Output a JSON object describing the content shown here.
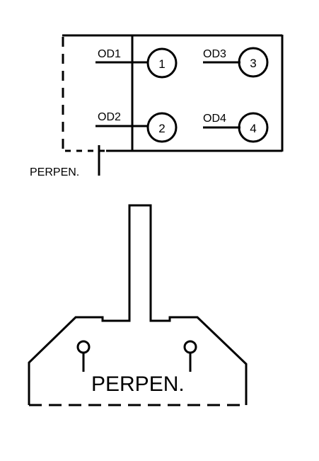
{
  "top_schematic": {
    "labels": {
      "od1": "OD1",
      "od2": "OD2",
      "od3": "OD3",
      "od4": "OD4",
      "perpen": "PERPEN."
    },
    "nodes": [
      "1",
      "2",
      "3",
      "4"
    ]
  },
  "bottom_part": {
    "label": "PERPEN."
  }
}
